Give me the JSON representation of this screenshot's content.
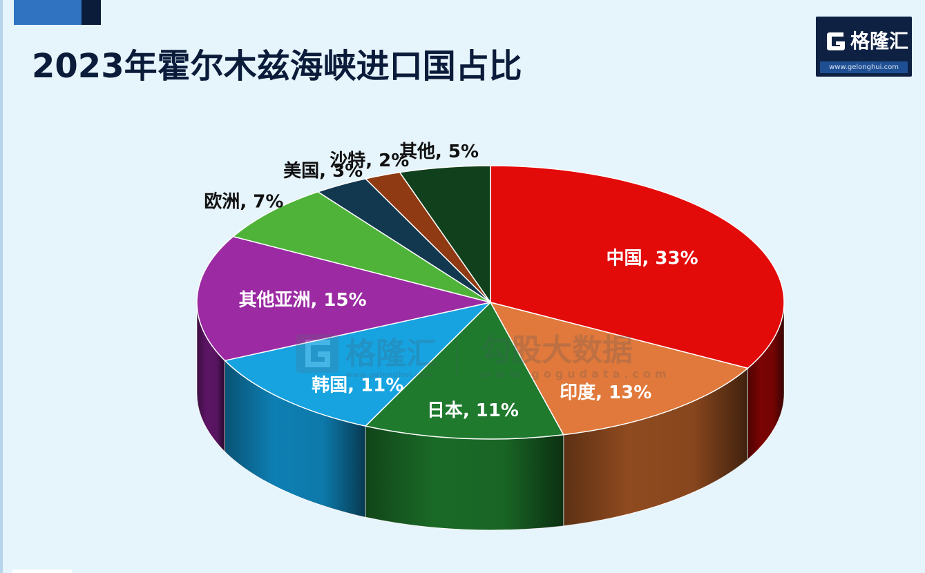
{
  "page": {
    "title": "2023年霍尔木兹海峡进口国占比"
  },
  "logo": {
    "brand": "格隆汇",
    "url": "www.gelonghui.com",
    "mark_icon": "gelonghui-g-logo-icon"
  },
  "watermark": {
    "brand": "格隆汇",
    "brand_url": "www.gelonghui.com",
    "name": "勾股大数据",
    "url": "www.gogudata.com"
  },
  "chart_data": {
    "type": "pie",
    "style": "3d",
    "title": "2023年霍尔木兹海峡进口国占比",
    "unit": "%",
    "slices": [
      {
        "name": "中国",
        "value": 33,
        "label": "中国, 33%",
        "color": "#e30a0a",
        "side_color": "#7a0404",
        "label_color": "#ffffff"
      },
      {
        "name": "印度",
        "value": 13,
        "label": "印度, 13%",
        "color": "#e0793b",
        "side_color": "#8f4a1f",
        "label_color": "#ffffff"
      },
      {
        "name": "日本",
        "value": 11,
        "label": "日本, 11%",
        "color": "#1f7a2e",
        "side_color": "#1a6a27",
        "label_color": "#ffffff"
      },
      {
        "name": "韩国",
        "value": 11,
        "label": "韩国, 11%",
        "color": "#17a3e0",
        "side_color": "#0e7fb3",
        "label_color": "#ffffff"
      },
      {
        "name": "其他亚洲",
        "value": 15,
        "label": "其他亚洲, 15%",
        "color": "#9b2aa3",
        "side_color": "#5c1565",
        "label_color": "#ffffff"
      },
      {
        "name": "欧洲",
        "value": 7,
        "label": "欧洲, 7%",
        "color": "#4fb33a",
        "side_color": "#2f7a22",
        "label_color": "#111111"
      },
      {
        "name": "美国",
        "value": 3,
        "label": "美国, 3%",
        "color": "#12384f",
        "side_color": "#0a2131",
        "label_color": "#111111"
      },
      {
        "name": "沙特",
        "value": 2,
        "label": "沙特, 2%",
        "color": "#8f3a12",
        "side_color": "#5a230a",
        "label_color": "#111111"
      },
      {
        "name": "其他",
        "value": 5,
        "label": "其他, 5%",
        "color": "#11401d",
        "side_color": "#0a2812",
        "label_color": "#111111"
      }
    ],
    "start_angle_deg": 270,
    "direction": "clockwise",
    "legend": "none",
    "labels": "on-slice"
  }
}
